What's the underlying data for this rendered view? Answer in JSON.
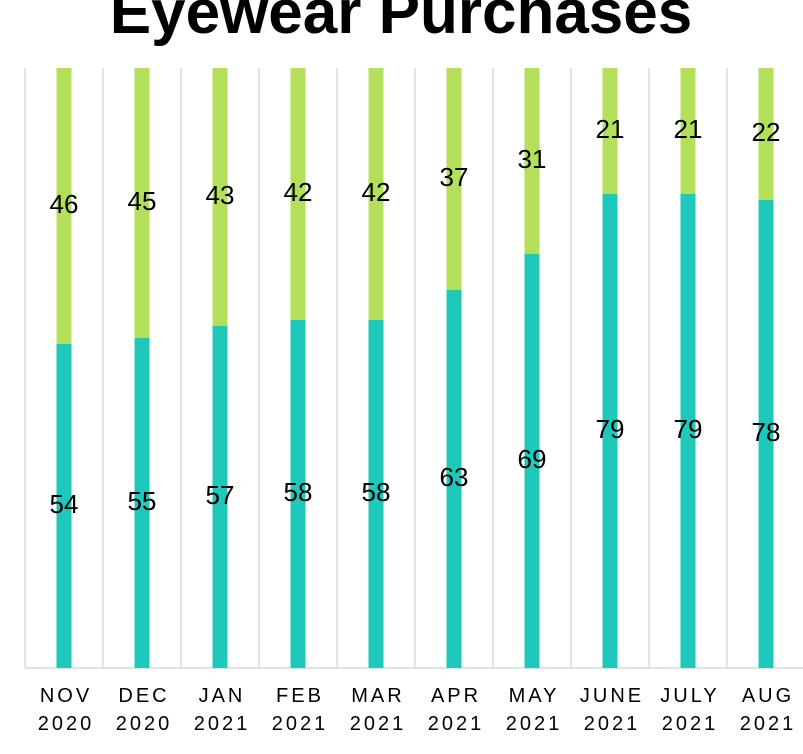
{
  "chart_data": {
    "type": "stacked_bar",
    "title": "Eyewear Purchases",
    "categories": [
      "NOV 2020",
      "DEC 2020",
      "JAN 2021",
      "FEB 2021",
      "MAR 2021",
      "APR 2021",
      "MAY 2021",
      "JUNE 2021",
      "JULY 2021",
      "AUG 2021"
    ],
    "series": [
      {
        "color": "#1ec8bb",
        "values": [
          54,
          55,
          57,
          58,
          58,
          63,
          69,
          79,
          79,
          78
        ]
      },
      {
        "color": "#b3df5a",
        "values": [
          46,
          45,
          43,
          42,
          42,
          37,
          31,
          21,
          21,
          22
        ]
      }
    ],
    "ylim": [
      0,
      100
    ]
  }
}
